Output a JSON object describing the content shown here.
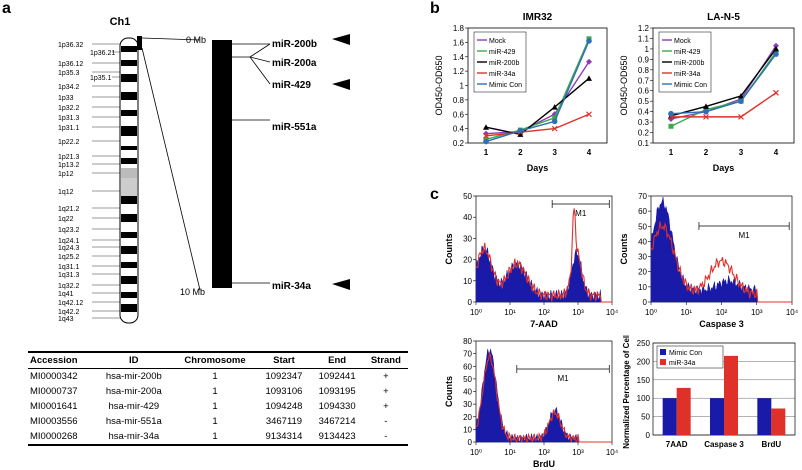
{
  "panel_labels": {
    "a": "a",
    "b": "b",
    "c": "c"
  },
  "chromosome": {
    "title": "Ch1",
    "bands": [
      "1p36.32",
      "1p36.21",
      "1p36.12",
      "1p35.3",
      "1p35.1",
      "1p34.2",
      "1p33",
      "1p32.2",
      "1p31.3",
      "1p31.1",
      "1p22.2",
      "1p21.3",
      "1p13.2",
      "1p12",
      "1q12",
      "1q21.2",
      "1q22",
      "1q23.2",
      "1q24.1",
      "1q24.3",
      "1q25.2",
      "1q31.1",
      "1q31.3",
      "1q32.2",
      "1q41",
      "1q42.12",
      "1q42.2",
      "1q43"
    ],
    "scale_top": "0 Mb",
    "scale_bottom": "10 Mb",
    "mirnas": [
      "miR-200b",
      "miR-200a",
      "miR-429",
      "miR-551a",
      "miR-34a"
    ]
  },
  "table": {
    "headers": [
      "Accession",
      "ID",
      "Chromosome",
      "Start",
      "End",
      "Strand"
    ],
    "rows": [
      [
        "MI0000342",
        "hsa-mir-200b",
        "1",
        "1092347",
        "1092441",
        "+"
      ],
      [
        "MI0000737",
        "hsa-mir-200a",
        "1",
        "1093106",
        "1093195",
        "+"
      ],
      [
        "MI0001641",
        "hsa-mir-429",
        "1",
        "1094248",
        "1094330",
        "+"
      ],
      [
        "MI0003556",
        "hsa-mir-551a",
        "1",
        "3467119",
        "3467214",
        "-"
      ],
      [
        "MI0000268",
        "hsa-mir-34a",
        "1",
        "9134314",
        "9134423",
        "-"
      ]
    ]
  },
  "chart_data": [
    {
      "type": "line",
      "title": "IMR32",
      "xlabel": "Days",
      "ylabel": "OD450-OD650",
      "x": [
        1,
        2,
        3,
        4
      ],
      "ylim": [
        0.2,
        1.8
      ],
      "yticks": [
        "0.2",
        "0.4",
        "0.6",
        "0.8",
        "1",
        "1.2",
        "1.4",
        "1.6",
        "1.8"
      ],
      "series": [
        {
          "name": "Mock",
          "color": "#8a3fb0",
          "values": [
            0.33,
            0.36,
            0.6,
            1.33
          ]
        },
        {
          "name": "miR-429",
          "color": "#3caa4a",
          "values": [
            0.25,
            0.38,
            0.55,
            1.65
          ]
        },
        {
          "name": "miR-200b",
          "color": "#000000",
          "values": [
            0.42,
            0.32,
            0.7,
            1.1
          ]
        },
        {
          "name": "miR-34a",
          "color": "#e0302a",
          "values": [
            0.3,
            0.35,
            0.4,
            0.6
          ]
        },
        {
          "name": "Mimic Con",
          "color": "#2f6fb5",
          "values": [
            0.22,
            0.37,
            0.5,
            1.62
          ]
        }
      ]
    },
    {
      "type": "line",
      "title": "LA-N-5",
      "xlabel": "Days",
      "ylabel": "OD450-OD650",
      "x": [
        1,
        2,
        3,
        4
      ],
      "ylim": [
        0.1,
        1.2
      ],
      "yticks": [
        "0.1",
        "0.2",
        "0.3",
        "0.4",
        "0.5",
        "0.6",
        "0.7",
        "0.8",
        "0.9",
        "1",
        "1.1",
        "1.2"
      ],
      "series": [
        {
          "name": "Mock",
          "color": "#8a3fb0",
          "values": [
            0.33,
            0.4,
            0.52,
            1.03
          ]
        },
        {
          "name": "miR-429",
          "color": "#3caa4a",
          "values": [
            0.26,
            0.42,
            0.5,
            0.97
          ]
        },
        {
          "name": "miR-200b",
          "color": "#000000",
          "values": [
            0.36,
            0.45,
            0.55,
            1.0
          ]
        },
        {
          "name": "miR-34a",
          "color": "#e0302a",
          "values": [
            0.35,
            0.35,
            0.35,
            0.58
          ]
        },
        {
          "name": "Mimic Con",
          "color": "#2f6fb5",
          "values": [
            0.38,
            0.4,
            0.5,
            0.95
          ]
        }
      ]
    },
    {
      "type": "area",
      "title": "",
      "xlabel": "7-AAD",
      "ylabel": "Counts",
      "ylim": [
        0,
        50
      ],
      "yticks": [
        "0",
        "10",
        "20",
        "30",
        "40",
        "50"
      ],
      "xticks": [
        "10⁰",
        "10¹",
        "10²",
        "10³",
        "10⁴"
      ],
      "gate": "M1",
      "series_colors": {
        "filled": "#1a1aa8",
        "outline": "#e0302a"
      }
    },
    {
      "type": "area",
      "title": "",
      "xlabel": "Caspase 3",
      "ylabel": "Counts",
      "ylim": [
        0,
        70
      ],
      "yticks": [
        "0",
        "10",
        "20",
        "30",
        "40",
        "50",
        "60",
        "70"
      ],
      "xticks": [
        "10⁰",
        "10¹",
        "10²",
        "10³",
        "10⁴"
      ],
      "gate": "M1",
      "series_colors": {
        "filled": "#1a1aa8",
        "outline": "#e0302a"
      }
    },
    {
      "type": "area",
      "title": "",
      "xlabel": "BrdU",
      "ylabel": "Counts",
      "ylim": [
        0,
        80
      ],
      "yticks": [
        "0",
        "10",
        "20",
        "30",
        "40",
        "50",
        "60",
        "70",
        "80"
      ],
      "xticks": [
        "10⁰",
        "10¹",
        "10²",
        "10³",
        "10⁴"
      ],
      "gate": "M1",
      "series_colors": {
        "filled": "#1a1aa8",
        "outline": "#e0302a"
      }
    },
    {
      "type": "bar",
      "title": "",
      "ylabel": "Normalized Percentage of Cells",
      "categories": [
        "7AAD",
        "Caspase 3",
        "BrdU"
      ],
      "ylim": [
        0,
        250
      ],
      "yticks": [
        "0",
        "50",
        "100",
        "150",
        "200",
        "250"
      ],
      "series": [
        {
          "name": "Mimic Con",
          "color": "#1a1aa8",
          "values": [
            100,
            100,
            100
          ]
        },
        {
          "name": "miR-34a",
          "color": "#e0302a",
          "values": [
            128,
            215,
            72
          ]
        }
      ]
    }
  ]
}
